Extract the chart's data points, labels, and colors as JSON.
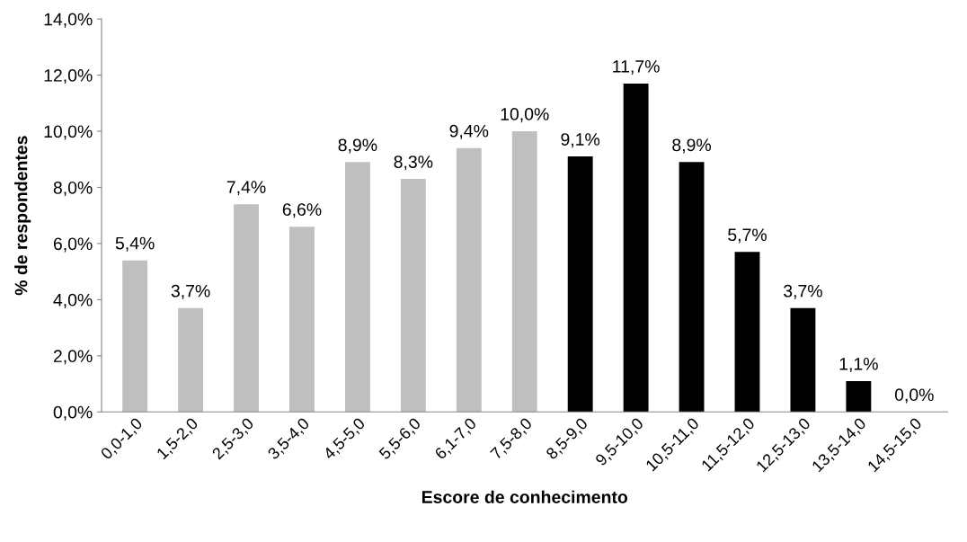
{
  "chart_data": {
    "type": "bar",
    "xlabel": "Escore de conhecimento",
    "ylabel": "% de respondentes",
    "categories": [
      "0,0-1,0",
      "1,5-2,0",
      "2,5-3,0",
      "3,5-4,0",
      "4,5-5,0",
      "5,5-6,0",
      "6,1-7,0",
      "7,5-8,0",
      "8,5-9,0",
      "9,5-10,0",
      "10,5-11,0",
      "11,5-12,0",
      "12,5-13,0",
      "13,5-14,0",
      "14,5-15,0"
    ],
    "values": [
      5.4,
      3.7,
      7.4,
      6.6,
      8.9,
      8.3,
      9.4,
      10.0,
      9.1,
      11.7,
      8.9,
      5.7,
      3.7,
      1.1,
      0.0
    ],
    "colors": [
      "#bfbfbf",
      "#bfbfbf",
      "#bfbfbf",
      "#bfbfbf",
      "#bfbfbf",
      "#bfbfbf",
      "#bfbfbf",
      "#bfbfbf",
      "#000000",
      "#000000",
      "#000000",
      "#000000",
      "#000000",
      "#000000",
      "#000000"
    ],
    "value_labels": [
      "5,4%",
      "3,7%",
      "7,4%",
      "6,6%",
      "8,9%",
      "8,3%",
      "9,4%",
      "10,0%",
      "9,1%",
      "11,7%",
      "8,9%",
      "5,7%",
      "3,7%",
      "1,1%",
      "0,0%"
    ],
    "ylim": [
      0,
      14
    ],
    "yticks": [
      {
        "value": 0,
        "label": "0,0%"
      },
      {
        "value": 2,
        "label": "2,0%"
      },
      {
        "value": 4,
        "label": "4,0%"
      },
      {
        "value": 6,
        "label": "6,0%"
      },
      {
        "value": 8,
        "label": "8,0%"
      },
      {
        "value": 10,
        "label": "10,0%"
      },
      {
        "value": 12,
        "label": "12,0%"
      },
      {
        "value": 14,
        "label": "14,0%"
      }
    ],
    "grid": false,
    "legend": false
  }
}
